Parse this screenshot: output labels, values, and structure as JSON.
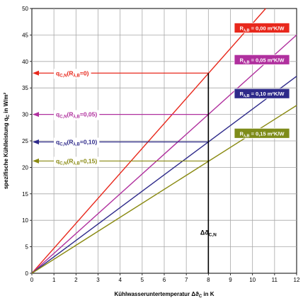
{
  "chart_data": {
    "type": "line",
    "xlabel": "Kühlwasseruntertemperatur  Δϑ",
    "xlabel_sub": "C",
    "xlabel_unit": " in K",
    "ylabel": "spezifische Kühlleistung  q",
    "ylabel_sub": "C",
    "ylabel_unit": " in W/m²",
    "xlim": [
      0,
      12
    ],
    "ylim": [
      0,
      50
    ],
    "x_ticks": [
      0,
      1,
      2,
      3,
      4,
      5,
      6,
      7,
      8,
      9,
      10,
      11,
      12
    ],
    "y_ticks": [
      0,
      5,
      10,
      15,
      20,
      25,
      30,
      35,
      40,
      45,
      50
    ],
    "grid": true,
    "series": [
      {
        "name": "R",
        "name_sub": "λ,B",
        "name_value": " = 0,00 m²K/W",
        "color": "#e8281c",
        "x": [
          0,
          10.6
        ],
        "y": [
          0,
          50
        ],
        "callout_main": "q",
        "callout_sub": "C,N",
        "callout_mid": "(R",
        "callout_sub2": "λ,B",
        "callout_tail": "=0)",
        "callout_value": 37.8
      },
      {
        "name": "R",
        "name_sub": "λ,B",
        "name_value": " = 0,05 m²K/W",
        "color": "#b0309e",
        "x": [
          0,
          12
        ],
        "y": [
          0,
          45
        ],
        "callout_main": "q",
        "callout_sub": "C,N",
        "callout_mid": "(R",
        "callout_sub2": "λ,B",
        "callout_tail": "=0,05)",
        "callout_value": 30
      },
      {
        "name": "R",
        "name_sub": "λ,B",
        "name_value": " = 0,10 m²K/W",
        "color": "#2e2a8a",
        "x": [
          0,
          12
        ],
        "y": [
          0,
          37.2
        ],
        "callout_main": "q",
        "callout_sub": "C,N",
        "callout_mid": "(R",
        "callout_sub2": "λ,B",
        "callout_tail": "=0,10)",
        "callout_value": 24.8
      },
      {
        "name": "R",
        "name_sub": "λ,B",
        "name_value": " = 0,15 m²K/W",
        "color": "#8a8a12",
        "x": [
          0,
          12
        ],
        "y": [
          0,
          31.7
        ],
        "callout_main": "q",
        "callout_sub": "C,N",
        "callout_mid": "(R",
        "callout_sub2": "λ,B",
        "callout_tail": "=0,15)",
        "callout_value": 21.2
      }
    ],
    "marker": {
      "x": 8,
      "label": "Δϑ",
      "label_sub": "C,N"
    },
    "legend_box_colors": [
      "#e8281c",
      "#b0309e",
      "#2e2a8a",
      "#7e8c1a"
    ]
  }
}
